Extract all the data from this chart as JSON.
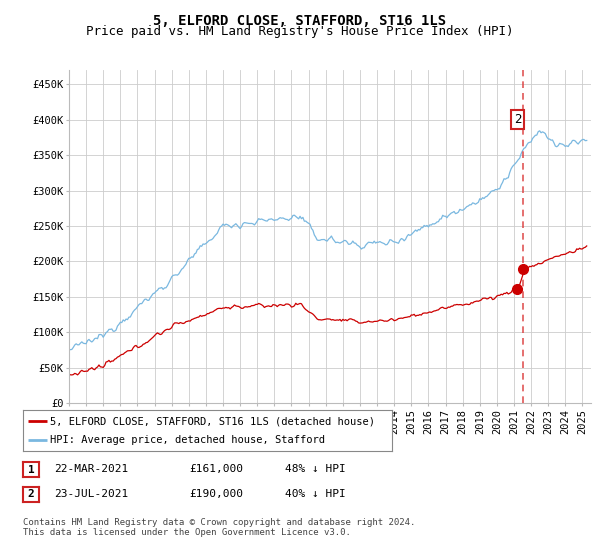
{
  "title": "5, ELFORD CLOSE, STAFFORD, ST16 1LS",
  "subtitle": "Price paid vs. HM Land Registry's House Price Index (HPI)",
  "ylabel_ticks": [
    "£0",
    "£50K",
    "£100K",
    "£150K",
    "£200K",
    "£250K",
    "£300K",
    "£350K",
    "£400K",
    "£450K"
  ],
  "ytick_values": [
    0,
    50000,
    100000,
    150000,
    200000,
    250000,
    300000,
    350000,
    400000,
    450000
  ],
  "ylim": [
    0,
    470000
  ],
  "xlim_start": 1995.0,
  "xlim_end": 2025.5,
  "hpi_color": "#7ab8e0",
  "price_color": "#cc0000",
  "dashed_color": "#dd4444",
  "marker1_date_year": 2021,
  "marker1_date_month": 3,
  "marker2_date_year": 2021,
  "marker2_date_month": 7,
  "marker1_price": 161000,
  "marker2_price": 190000,
  "legend_line1": "5, ELFORD CLOSE, STAFFORD, ST16 1LS (detached house)",
  "legend_line2": "HPI: Average price, detached house, Stafford",
  "table_row1": [
    "1",
    "22-MAR-2021",
    "£161,000",
    "48% ↓ HPI"
  ],
  "table_row2": [
    "2",
    "23-JUL-2021",
    "£190,000",
    "40% ↓ HPI"
  ],
  "footnote": "Contains HM Land Registry data © Crown copyright and database right 2024.\nThis data is licensed under the Open Government Licence v3.0.",
  "background_color": "#ffffff",
  "grid_color": "#cccccc",
  "title_fontsize": 10,
  "subtitle_fontsize": 9,
  "tick_fontsize": 7.5,
  "legend_fontsize": 7.5,
  "table_fontsize": 8,
  "footnote_fontsize": 6.5
}
